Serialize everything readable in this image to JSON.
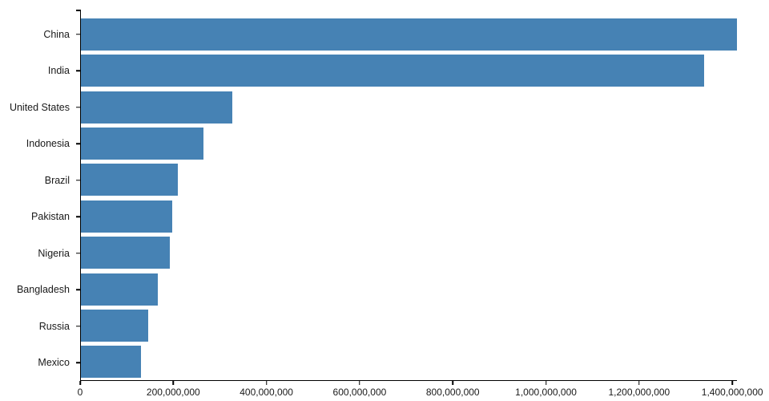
{
  "chart_data": {
    "type": "bar",
    "orientation": "horizontal",
    "title": "",
    "xlabel": "",
    "ylabel": "",
    "categories": [
      "China",
      "India",
      "United States",
      "Indonesia",
      "Brazil",
      "Pakistan",
      "Nigeria",
      "Bangladesh",
      "Russia",
      "Mexico"
    ],
    "values": [
      1410000000,
      1339000000,
      325000000,
      264000000,
      209000000,
      197000000,
      191000000,
      165000000,
      144000000,
      129000000
    ],
    "xlim": [
      0,
      1410000000
    ],
    "x_ticks": [
      0,
      200000000,
      400000000,
      600000000,
      800000000,
      1000000000,
      1200000000,
      1400000000
    ],
    "x_tick_labels": [
      "0",
      "200,000,000",
      "400,000,000",
      "600,000,000",
      "800,000,000",
      "1,000,000,000",
      "1,200,000,000",
      "1,400,000,000"
    ],
    "grid": false,
    "legend": false,
    "bar_color": "#4682b4",
    "axis_color": "#000000",
    "label_color": "#1a1a1a"
  }
}
